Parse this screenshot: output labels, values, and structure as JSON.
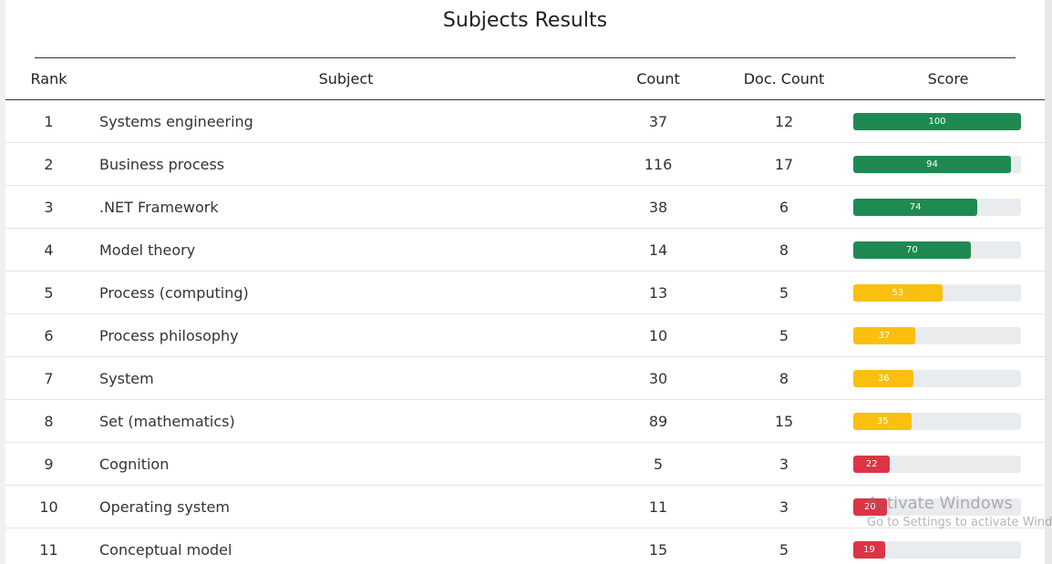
{
  "title": "Subjects Results",
  "columns": {
    "rank": "Rank",
    "subject": "Subject",
    "count": "Count",
    "doc_count": "Doc. Count",
    "score": "Score"
  },
  "colors": {
    "green": "#1e8a52",
    "yellow": "#fbbf0f",
    "red": "#dc3545",
    "track": "#e9ecef"
  },
  "rows": [
    {
      "rank": "1",
      "subject": "Systems engineering",
      "count": "37",
      "doc_count": "12",
      "score": 100,
      "score_label": "100",
      "color": "green"
    },
    {
      "rank": "2",
      "subject": "Business process",
      "count": "116",
      "doc_count": "17",
      "score": 94,
      "score_label": "94",
      "color": "green"
    },
    {
      "rank": "3",
      "subject": ".NET Framework",
      "count": "38",
      "doc_count": "6",
      "score": 74,
      "score_label": "74",
      "color": "green"
    },
    {
      "rank": "4",
      "subject": "Model theory",
      "count": "14",
      "doc_count": "8",
      "score": 70,
      "score_label": "70",
      "color": "green"
    },
    {
      "rank": "5",
      "subject": "Process (computing)",
      "count": "13",
      "doc_count": "5",
      "score": 53,
      "score_label": "53",
      "color": "yellow"
    },
    {
      "rank": "6",
      "subject": "Process philosophy",
      "count": "10",
      "doc_count": "5",
      "score": 37,
      "score_label": "37",
      "color": "yellow"
    },
    {
      "rank": "7",
      "subject": "System",
      "count": "30",
      "doc_count": "8",
      "score": 36,
      "score_label": "36",
      "color": "yellow"
    },
    {
      "rank": "8",
      "subject": "Set (mathematics)",
      "count": "89",
      "doc_count": "15",
      "score": 35,
      "score_label": "35",
      "color": "yellow"
    },
    {
      "rank": "9",
      "subject": "Cognition",
      "count": "5",
      "doc_count": "3",
      "score": 22,
      "score_label": "22",
      "color": "red"
    },
    {
      "rank": "10",
      "subject": "Operating system",
      "count": "11",
      "doc_count": "3",
      "score": 20,
      "score_label": "20",
      "color": "red"
    },
    {
      "rank": "11",
      "subject": "Conceptual model",
      "count": "15",
      "doc_count": "5",
      "score": 19,
      "score_label": "19",
      "color": "red"
    }
  ],
  "watermark": {
    "line1": "Activate Windows",
    "line2": "Go to Settings to activate Windows."
  }
}
